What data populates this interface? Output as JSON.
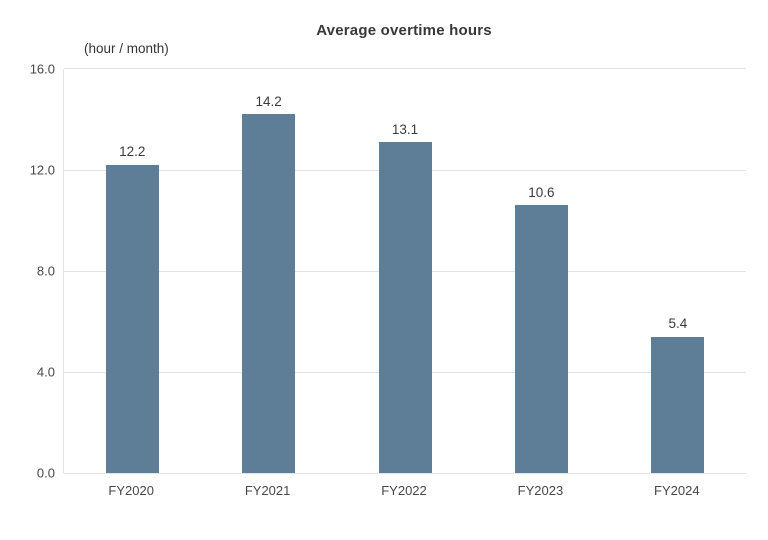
{
  "title": "Average overtime hours",
  "unit_label": "(hour / month)",
  "colors": {
    "bar": "#5d7e96",
    "grid": "#e3e3e3",
    "title_text": "#383838",
    "tick_text": "#474747",
    "value_label_text": "#3a3a3a",
    "background": "#ffffff"
  },
  "chart_data": {
    "type": "bar",
    "categories": [
      "FY2020",
      "FY2021",
      "FY2022",
      "FY2023",
      "FY2024"
    ],
    "values": [
      12.2,
      14.2,
      13.1,
      10.6,
      5.4
    ],
    "data_labels": [
      "12.2",
      "14.2",
      "13.1",
      "10.6",
      "5.4"
    ],
    "title": "Average overtime hours",
    "xlabel": "",
    "ylabel": "(hour / month)",
    "ylim": [
      0,
      16
    ],
    "ytick_values": [
      0,
      4,
      8,
      12,
      16
    ],
    "ytick_labels": [
      "0.0",
      "4.0",
      "8.0",
      "12.0",
      "16.0"
    ],
    "grid": "horizontal",
    "legend": "none"
  }
}
